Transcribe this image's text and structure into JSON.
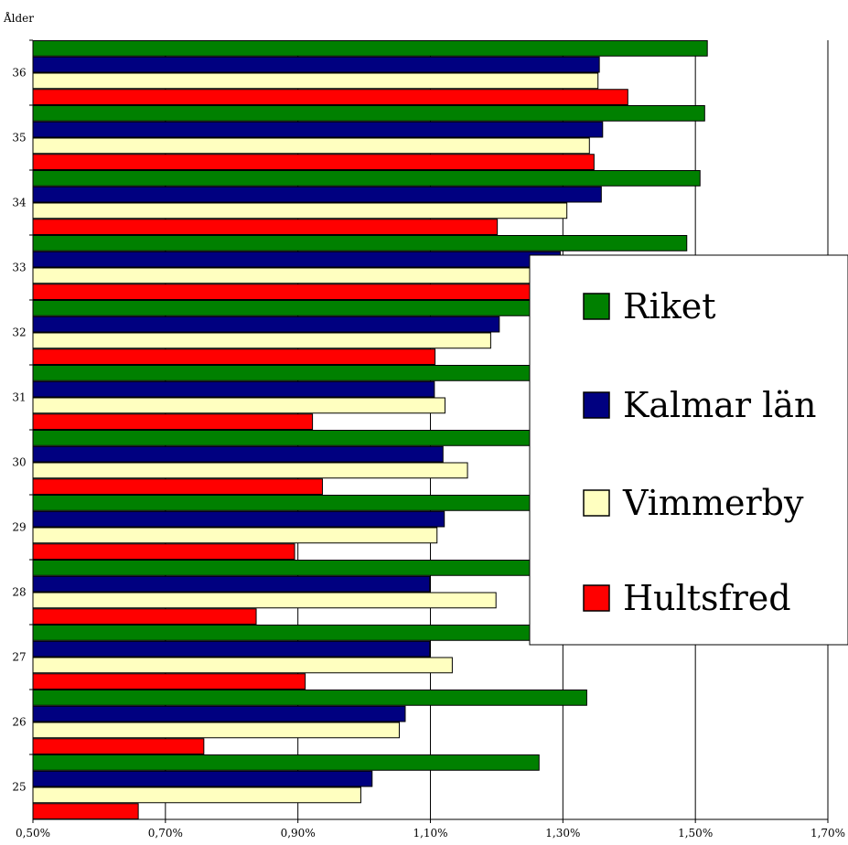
{
  "chart_data": {
    "type": "bar",
    "orientation": "horizontal",
    "ylabel": "Ålder",
    "xlabel": "",
    "xlim": [
      0.005,
      0.017
    ],
    "x_ticks": [
      0.005,
      0.007,
      0.009,
      0.011,
      0.013,
      0.015,
      0.017
    ],
    "x_tick_labels": [
      "0,50%",
      "0,70%",
      "0,90%",
      "1,10%",
      "1,30%",
      "1,50%",
      "1,70%"
    ],
    "categories": [
      "25",
      "26",
      "27",
      "28",
      "29",
      "30",
      "31",
      "32",
      "33",
      "34",
      "35",
      "36"
    ],
    "grid": "vertical",
    "legend_position": "right",
    "series": [
      {
        "name": "Riket",
        "color": "#008000",
        "values": [
          0.01264,
          0.01336,
          0.01381,
          0.01405,
          0.01417,
          0.01432,
          0.01443,
          0.01457,
          0.01487,
          0.01507,
          0.01514,
          0.01518
        ]
      },
      {
        "name": "Kalmar län",
        "color": "#000080",
        "values": [
          0.01012,
          0.01062,
          0.01099,
          0.01099,
          0.01121,
          0.01119,
          0.01106,
          0.01204,
          0.01296,
          0.01358,
          0.0136,
          0.01355
        ]
      },
      {
        "name": "Vimmerby",
        "color": "#ffffc0",
        "values": [
          0.00995,
          0.01053,
          0.01133,
          0.01199,
          0.0111,
          0.01156,
          0.01122,
          0.01191,
          0.01296,
          0.01306,
          0.0134,
          0.01353
        ]
      },
      {
        "name": "Hultsfred",
        "color": "#ff0000",
        "values": [
          0.00659,
          0.00758,
          0.00911,
          0.00837,
          0.00895,
          0.00937,
          0.00922,
          0.01107,
          0.01352,
          0.01201,
          0.01347,
          0.01398
        ]
      }
    ]
  }
}
